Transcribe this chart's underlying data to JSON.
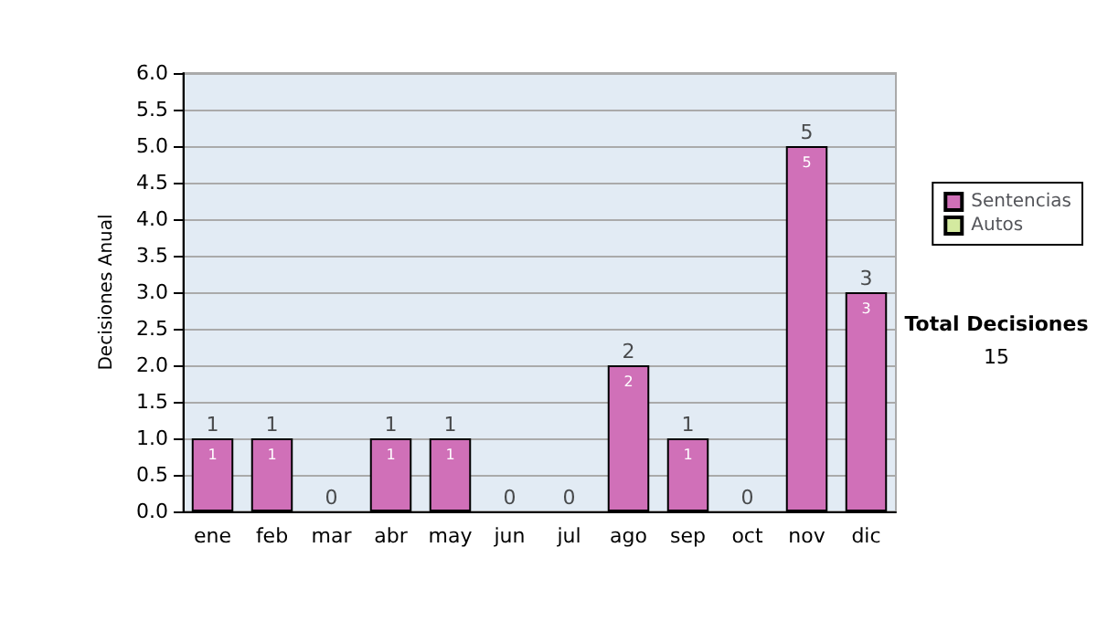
{
  "chart_data": {
    "type": "bar",
    "stacked": true,
    "ylabel": "Decisiones Anual",
    "categories": [
      "ene",
      "feb",
      "mar",
      "abr",
      "may",
      "jun",
      "jul",
      "ago",
      "sep",
      "oct",
      "nov",
      "dic"
    ],
    "series": [
      {
        "name": "Sentencias",
        "color": "#d070b8",
        "values": [
          1,
          1,
          0,
          1,
          1,
          0,
          0,
          2,
          1,
          0,
          5,
          3
        ],
        "value_labels": [
          "1",
          "1",
          null,
          "1",
          "1",
          null,
          null,
          "2",
          "1",
          null,
          "5",
          "3"
        ]
      },
      {
        "name": "Autos",
        "color": "#d4eaa0",
        "values": [
          0,
          0,
          0,
          0,
          0,
          0,
          0,
          0,
          0,
          0,
          0,
          0
        ]
      }
    ],
    "totals": [
      "1",
      "1",
      "0",
      "1",
      "1",
      "0",
      "0",
      "2",
      "1",
      "0",
      "5",
      "3"
    ],
    "ylim": [
      0,
      6
    ],
    "yticks": [
      {
        "value": 0,
        "label": "0.0"
      },
      {
        "value": 0.5,
        "label": "0.5"
      },
      {
        "value": 1,
        "label": "1.0"
      },
      {
        "value": 1.5,
        "label": "1.5"
      },
      {
        "value": 2,
        "label": "2.0"
      },
      {
        "value": 2.5,
        "label": "2.5"
      },
      {
        "value": 3,
        "label": "3.0"
      },
      {
        "value": 3.5,
        "label": "3.5"
      },
      {
        "value": 4,
        "label": "4.0"
      },
      {
        "value": 4.5,
        "label": "4.5"
      },
      {
        "value": 5,
        "label": "5.0"
      },
      {
        "value": 5.5,
        "label": "5.5"
      },
      {
        "value": 6,
        "label": "6.0"
      }
    ],
    "grid": "y",
    "legend": "right",
    "annotations": [
      "Total Decisiones",
      "15"
    ]
  }
}
